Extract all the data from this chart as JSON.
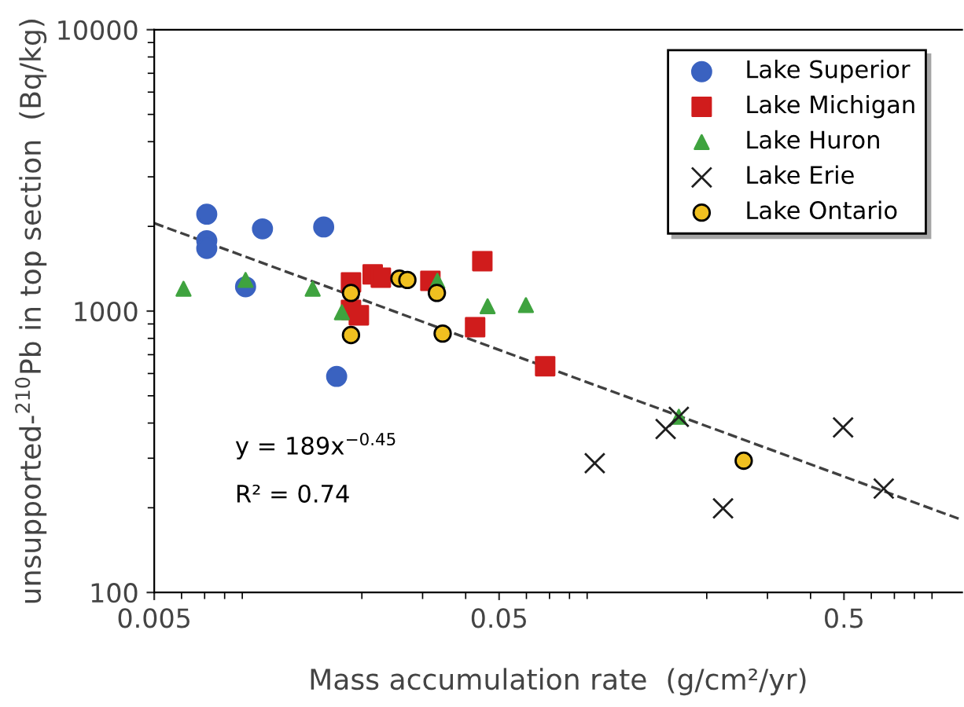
{
  "chart_data": {
    "type": "scatter",
    "xlabel": "Mass accumulation rate  (g/cm²/yr)",
    "ylabel": "unsupported-$^{210}$Pb in top section  (Bq/kg)",
    "log": "xy",
    "xlim": [
      0.005,
      1.1
    ],
    "xticks": [
      0.005,
      0.05,
      0.5
    ],
    "ylim": [
      100,
      10000
    ],
    "yticks": [
      100,
      1000,
      10000
    ],
    "grid": false,
    "legend": "top right",
    "annotations": [
      "y = 189x$^{−0.45}$",
      "R² = 0.74"
    ],
    "series": [
      {
        "name": "Lake Superior",
        "color": "#3a62c0",
        "marker": "circle",
        "x": [
          0.0071,
          0.0071,
          0.0071,
          0.0103,
          0.0155,
          0.0092,
          0.0169
        ],
        "values": [
          2210,
          1780,
          1670,
          1960,
          1990,
          1220,
          586
        ]
      },
      {
        "name": "Lake Michigan",
        "color": "#d01c1c",
        "marker": "square",
        "x": [
          0.0186,
          0.0215,
          0.0227,
          0.0186,
          0.0196,
          0.0316,
          0.0447,
          0.0426,
          0.068
        ],
        "values": [
          1265,
          1350,
          1315,
          1010,
          966,
          1280,
          1505,
          876,
          637
        ]
      },
      {
        "name": "Lake Huron",
        "color": "#3fa33f",
        "marker": "triangle",
        "x": [
          0.00608,
          0.0092,
          0.0144,
          0.0175,
          0.0331,
          0.0463,
          0.0598,
          0.166
        ],
        "values": [
          1200,
          1290,
          1200,
          990,
          1280,
          1040,
          1050,
          421
        ]
      },
      {
        "name": "Lake Erie",
        "color": "#202020",
        "marker": "cross",
        "x": [
          0.0947,
          0.152,
          0.166,
          0.497,
          0.223,
          0.652
        ],
        "values": [
          288,
          381,
          421,
          386,
          199,
          234
        ]
      },
      {
        "name": "Lake Ontario",
        "color": "#f0c020",
        "marker": "circle",
        "x": [
          0.0186,
          0.0186,
          0.0257,
          0.0271,
          0.033,
          0.0343,
          0.256
        ],
        "values": [
          1160,
          822,
          1305,
          1290,
          1160,
          832,
          294
        ]
      },
      {
        "type": "line",
        "color": "#404040",
        "line_style": "dashed",
        "marker": "none",
        "x": [
          0.005,
          1.1
        ],
        "values": [
          2053,
          181
        ]
      }
    ]
  }
}
